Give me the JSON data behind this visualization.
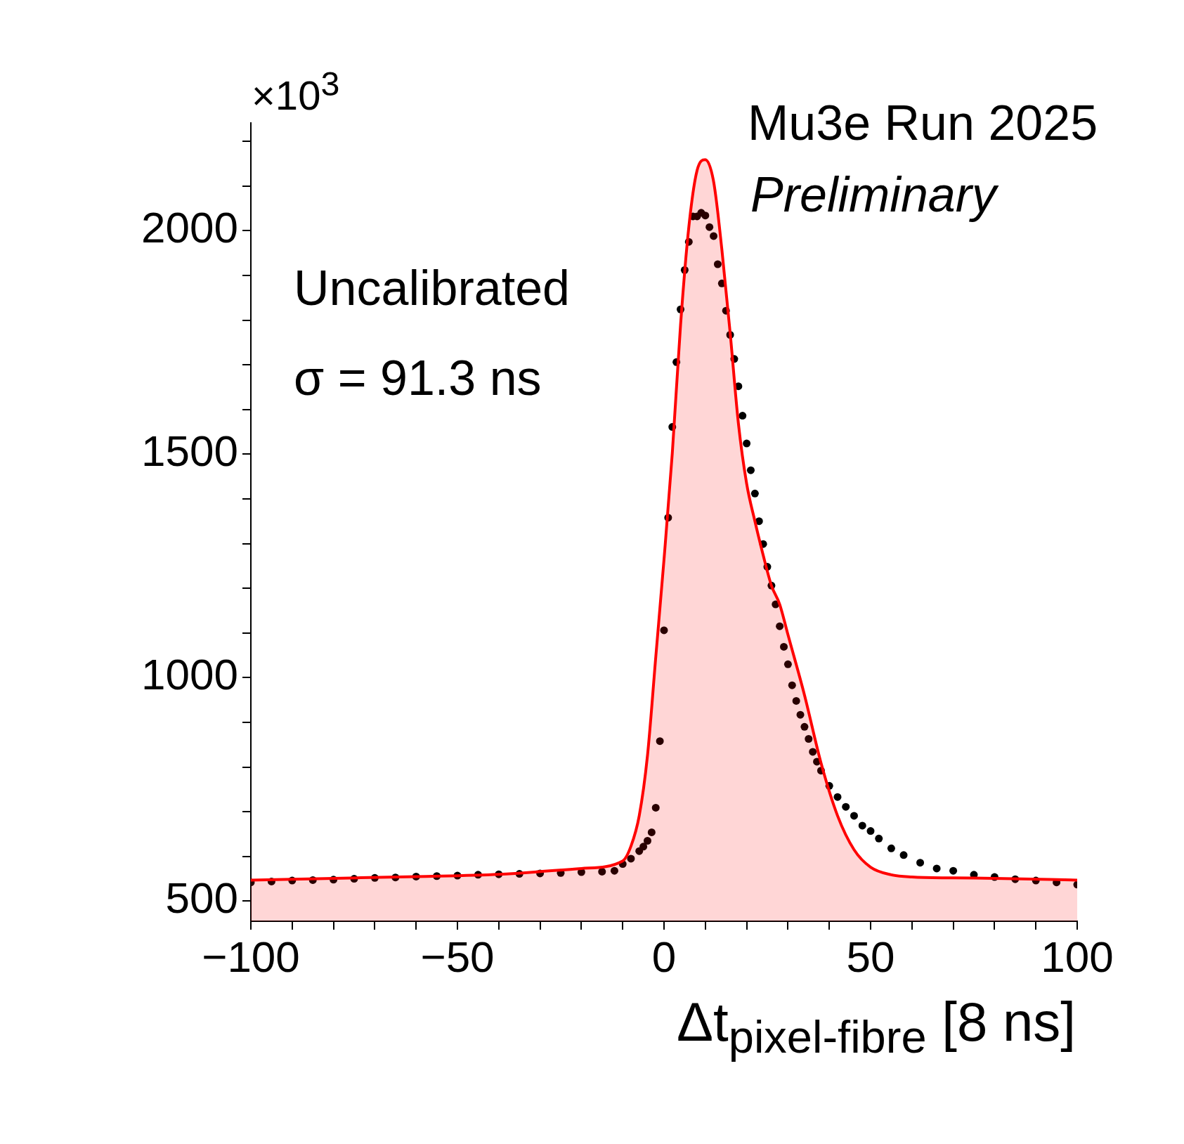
{
  "chart_data": {
    "type": "scatter",
    "xlabel": "Δt$_{pixel-fibre}$ [8 ns]",
    "xlim": [
      -100,
      100
    ],
    "ylim": [
      455,
      2241
    ],
    "xticks": [
      -100,
      {
        "value": -90,
        "label": null
      },
      {
        "value": -80,
        "label": null
      },
      {
        "value": -70,
        "label": null
      },
      {
        "value": -60,
        "label": null
      },
      -50,
      {
        "value": -40,
        "label": null
      },
      {
        "value": -30,
        "label": null
      },
      {
        "value": -20,
        "label": null
      },
      {
        "value": -10,
        "label": null
      },
      0,
      {
        "value": 10,
        "label": null
      },
      {
        "value": 20,
        "label": null
      },
      {
        "value": 30,
        "label": null
      },
      {
        "value": 40,
        "label": null
      },
      50,
      {
        "value": 60,
        "label": null
      },
      {
        "value": 70,
        "label": null
      },
      {
        "value": 80,
        "label": null
      },
      {
        "value": 90,
        "label": null
      },
      100
    ],
    "yticks": [
      500,
      {
        "value": 600,
        "label": null
      },
      {
        "value": 700,
        "label": null
      },
      {
        "value": 800,
        "label": null
      },
      {
        "value": 900,
        "label": null
      },
      1000,
      {
        "value": 1100,
        "label": null
      },
      {
        "value": 1200,
        "label": null
      },
      {
        "value": 1300,
        "label": null
      },
      {
        "value": 1400,
        "label": null
      },
      1500,
      {
        "value": 1600,
        "label": null
      },
      {
        "value": 1700,
        "label": null
      },
      {
        "value": 1800,
        "label": null
      },
      {
        "value": 1900,
        "label": null
      },
      2000,
      {
        "value": 2100,
        "label": null
      },
      {
        "value": 2200,
        "label": null
      }
    ],
    "grid": false,
    "legend": false,
    "marker": "circle",
    "annotations": [
      "×10$^{3}$",
      "Mu3e Run 2025",
      "Preliminary",
      "Uncalibrated",
      "σ = 91.3 ns"
    ],
    "series": [
      {
        "type": "area",
        "color": "#ff0000",
        "line_style": "solid",
        "marker": "none",
        "x": [
          -100,
          -80,
          -60,
          -40,
          -20,
          -10,
          -8,
          -6,
          -4,
          -2,
          0,
          2,
          4,
          6,
          8,
          10,
          12,
          14,
          16,
          18,
          20,
          22,
          24,
          26,
          28,
          30,
          34,
          38,
          42,
          46,
          50,
          55,
          60,
          70,
          80,
          100
        ],
        "values": [
          547,
          551,
          555,
          560,
          573,
          590,
          623,
          691,
          826,
          1046,
          1265,
          1502,
          1789,
          2008,
          2135,
          2159,
          2110,
          1958,
          1772,
          1569,
          1434,
          1350,
          1274,
          1206,
          1164,
          1096,
          961,
          809,
          691,
          615,
          576,
          559,
          554,
          552,
          551,
          547
        ]
      },
      {
        "type": "scatter",
        "color": "#000000",
        "x": [
          -100,
          -95,
          -90,
          -85,
          -80,
          -75,
          -70,
          -65,
          -60,
          -55,
          -50,
          -45,
          -40,
          -35,
          -30,
          -25,
          -20,
          -15,
          -12,
          -10,
          -8,
          -6,
          -5,
          -4,
          -3,
          -2,
          -1,
          0,
          1,
          2,
          3,
          4,
          5,
          6,
          7,
          8,
          9,
          10,
          11,
          12,
          13,
          14,
          15,
          16,
          17,
          18,
          19,
          20,
          21,
          22,
          23,
          24,
          25,
          26,
          27,
          28,
          29,
          30,
          31,
          32,
          33,
          34,
          35,
          36,
          37,
          38,
          40,
          42,
          44,
          46,
          48,
          50,
          52,
          55,
          58,
          62,
          66,
          70,
          75,
          80,
          85,
          90,
          95,
          100
        ],
        "values": [
          542,
          544,
          546,
          547,
          548,
          550,
          552,
          553,
          555,
          556,
          557,
          559,
          560,
          561,
          562,
          563,
          565,
          566,
          568,
          583,
          595,
          612,
          622,
          635,
          654,
          709,
          858,
          1106,
          1358,
          1561,
          1706,
          1824,
          1912,
          1975,
          2032,
          2032,
          2040,
          2034,
          2008,
          1988,
          1925,
          1882,
          1821,
          1767,
          1713,
          1652,
          1586,
          1524,
          1464,
          1412,
          1350,
          1299,
          1248,
          1206,
          1164,
          1115,
          1069,
          1030,
          983,
          948,
          917,
          890,
          863,
          834,
          812,
          792,
          758,
          733,
          711,
          691,
          669,
          657,
          640,
          618,
          603,
          586,
          573,
          568,
          559,
          554,
          549,
          546,
          542,
          537
        ]
      }
    ]
  }
}
